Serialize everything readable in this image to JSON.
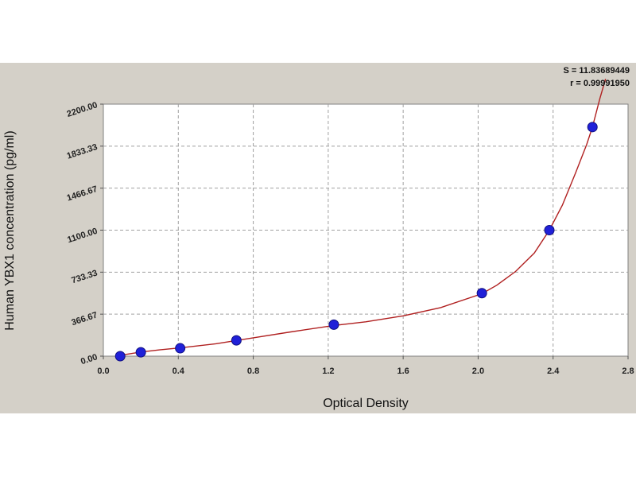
{
  "chart_data": {
    "type": "scatter",
    "title": "",
    "xlabel": "Optical Density",
    "ylabel": "Human YBX1 concentration (pg/ml)",
    "xlim": [
      0.0,
      2.8
    ],
    "ylim": [
      0.0,
      2200.0
    ],
    "x_ticks": [
      "0.0",
      "0.4",
      "0.8",
      "1.2",
      "1.6",
      "2.0",
      "2.4",
      "2.8"
    ],
    "y_ticks": [
      "0.00",
      "366.67",
      "733.33",
      "1100.00",
      "1466.67",
      "1833.33",
      "2200.00"
    ],
    "grid": true,
    "stats": {
      "s": "S = 11.83689449",
      "r": "r = 0.99991950"
    },
    "series": [
      {
        "marker_color": "#2020d8",
        "points": [
          {
            "x": 0.09,
            "y": 0
          },
          {
            "x": 0.2,
            "y": 34
          },
          {
            "x": 0.41,
            "y": 69
          },
          {
            "x": 0.71,
            "y": 138
          },
          {
            "x": 1.23,
            "y": 275
          },
          {
            "x": 2.02,
            "y": 550
          },
          {
            "x": 2.38,
            "y": 1100
          },
          {
            "x": 2.61,
            "y": 2000
          }
        ]
      }
    ],
    "curve": {
      "color": "#b02020",
      "points": [
        [
          0.07,
          0
        ],
        [
          0.1,
          10
        ],
        [
          0.2,
          36
        ],
        [
          0.3,
          55
        ],
        [
          0.41,
          72
        ],
        [
          0.6,
          108
        ],
        [
          0.8,
          160
        ],
        [
          1.0,
          212
        ],
        [
          1.23,
          268
        ],
        [
          1.4,
          300
        ],
        [
          1.6,
          352
        ],
        [
          1.8,
          424
        ],
        [
          2.02,
          545
        ],
        [
          2.1,
          620
        ],
        [
          2.2,
          740
        ],
        [
          2.3,
          900
        ],
        [
          2.38,
          1100
        ],
        [
          2.45,
          1320
        ],
        [
          2.52,
          1600
        ],
        [
          2.58,
          1850
        ],
        [
          2.61,
          2000
        ],
        [
          2.65,
          2250
        ],
        [
          2.68,
          2420
        ]
      ]
    }
  }
}
